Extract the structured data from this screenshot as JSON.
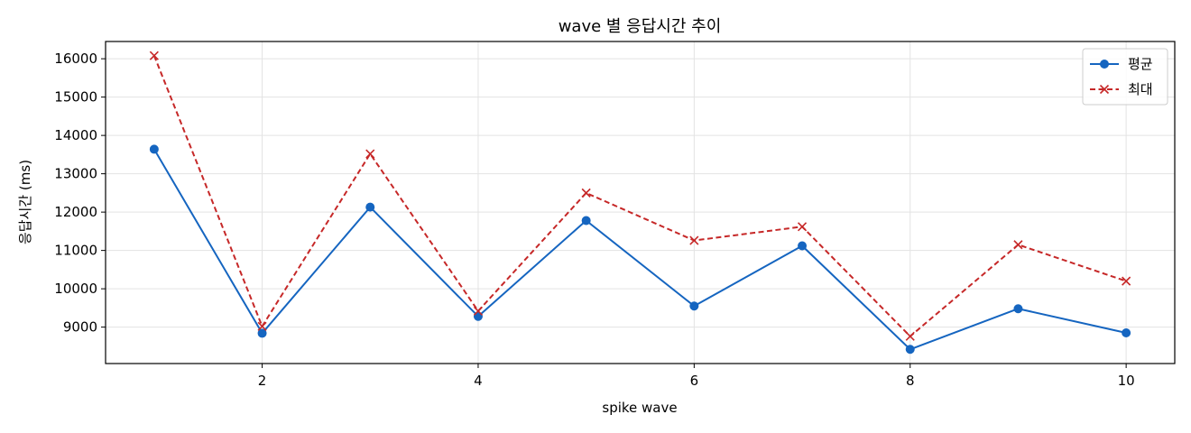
{
  "chart_data": {
    "type": "line",
    "title": "wave 별 응답시간 추이",
    "xlabel": "spike wave",
    "ylabel": "응답시간 (ms)",
    "x": [
      1,
      2,
      3,
      4,
      5,
      6,
      7,
      8,
      9,
      10
    ],
    "xlim": [
      0.55,
      10.45
    ],
    "ylim": [
      8050,
      16450
    ],
    "xticks": [
      2,
      4,
      6,
      8,
      10
    ],
    "yticks": [
      9000,
      10000,
      11000,
      12000,
      13000,
      14000,
      15000,
      16000
    ],
    "grid": true,
    "legend_position": "top-right",
    "series": [
      {
        "name": "평균",
        "color": "#1565c0",
        "line_style": "solid",
        "marker": "circle",
        "values": [
          13640,
          8840,
          12130,
          9280,
          11780,
          9550,
          11120,
          8420,
          9480,
          8850
        ]
      },
      {
        "name": "최대",
        "color": "#c62828",
        "line_style": "dashed",
        "marker": "x",
        "values": [
          16080,
          9020,
          13520,
          9420,
          12500,
          11260,
          11620,
          8760,
          11150,
          10200
        ]
      }
    ]
  }
}
